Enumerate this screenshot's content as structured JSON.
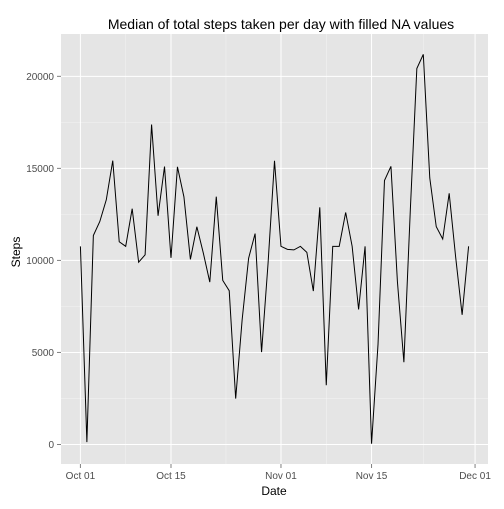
{
  "chart_data": {
    "type": "line",
    "title": "Median of total steps taken per day with filled NA values",
    "xlabel": "Date",
    "ylabel": "Steps",
    "x_ticks": [
      "Oct 01",
      "Oct 15",
      "Nov 01",
      "Nov 15",
      "Dec 01"
    ],
    "y_ticks": [
      "0",
      "5000",
      "10000",
      "15000",
      "20000"
    ],
    "xlim": [
      "2012-09-28",
      "2012-12-03"
    ],
    "ylim": [
      -1060,
      22300
    ],
    "grid": true,
    "panel_background": "#e5e5e5",
    "gridline_color": "#ffffff",
    "line_color": "#000000",
    "series": [
      {
        "x": [
          "2012-10-01",
          "2012-10-02",
          "2012-10-03",
          "2012-10-04",
          "2012-10-05",
          "2012-10-06",
          "2012-10-07",
          "2012-10-08",
          "2012-10-09",
          "2012-10-10",
          "2012-10-11",
          "2012-10-12",
          "2012-10-13",
          "2012-10-14",
          "2012-10-15",
          "2012-10-16",
          "2012-10-17",
          "2012-10-18",
          "2012-10-19",
          "2012-10-20",
          "2012-10-21",
          "2012-10-22",
          "2012-10-23",
          "2012-10-24",
          "2012-10-25",
          "2012-10-26",
          "2012-10-27",
          "2012-10-28",
          "2012-10-29",
          "2012-10-30",
          "2012-10-31",
          "2012-11-01",
          "2012-11-02",
          "2012-11-03",
          "2012-11-04",
          "2012-11-05",
          "2012-11-06",
          "2012-11-07",
          "2012-11-08",
          "2012-11-09",
          "2012-11-10",
          "2012-11-11",
          "2012-11-12",
          "2012-11-13",
          "2012-11-14",
          "2012-11-15",
          "2012-11-16",
          "2012-11-17",
          "2012-11-18",
          "2012-11-19",
          "2012-11-20",
          "2012-11-21",
          "2012-11-22",
          "2012-11-23",
          "2012-11-24",
          "2012-11-25",
          "2012-11-26",
          "2012-11-27",
          "2012-11-28",
          "2012-11-29",
          "2012-11-30"
        ],
        "values": [
          10765,
          126,
          11352,
          12116,
          13294,
          15420,
          11015,
          10765,
          12811,
          9900,
          10304,
          17382,
          12426,
          15098,
          10139,
          15084,
          13452,
          10056,
          11829,
          10395,
          8821,
          13460,
          8918,
          8355,
          2492,
          6778,
          10119,
          11458,
          5018,
          9819,
          15414,
          10765,
          10600,
          10571,
          10765,
          10439,
          8334,
          12883,
          3219,
          10765,
          10765,
          12608,
          10765,
          7336,
          10765,
          41,
          5441,
          14339,
          15110,
          8841,
          4472,
          12787,
          20427,
          21194,
          14478,
          11834,
          11162,
          13646,
          10183,
          7047,
          10765
        ]
      }
    ]
  }
}
